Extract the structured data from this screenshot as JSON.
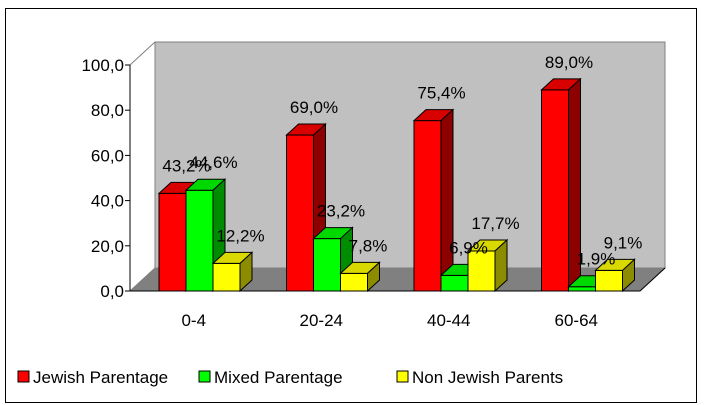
{
  "chart_data": {
    "type": "bar",
    "subtype": "3d-clustered",
    "categories": [
      "0-4",
      "20-24",
      "40-44",
      "60-64"
    ],
    "series": [
      {
        "name": "Jewish Parentage",
        "color": "#ff0000",
        "values": [
          43.2,
          69.0,
          75.4,
          89.0
        ],
        "labels": [
          "43,2%",
          "69,0%",
          "75,4%",
          "89,0%"
        ]
      },
      {
        "name": "Mixed Parentage",
        "color": "#00ff00",
        "values": [
          44.6,
          23.2,
          6.9,
          1.9
        ],
        "labels": [
          "44,6%",
          "23,2%",
          "6,9%",
          "1,9%"
        ]
      },
      {
        "name": "Non Jewish Parents",
        "color": "#ffff00",
        "values": [
          12.2,
          7.8,
          17.7,
          9.1
        ],
        "labels": [
          "12,2%",
          "7,8%",
          "17,7%",
          "9,1%"
        ]
      }
    ],
    "yticks": [
      "0,0",
      "20,0",
      "40,0",
      "60,0",
      "80,0",
      "100,0"
    ],
    "ylim": [
      0,
      100
    ],
    "grid": false,
    "wall_color": "#c0c0c0",
    "floor_color": "#808080",
    "legend_position": "bottom"
  }
}
